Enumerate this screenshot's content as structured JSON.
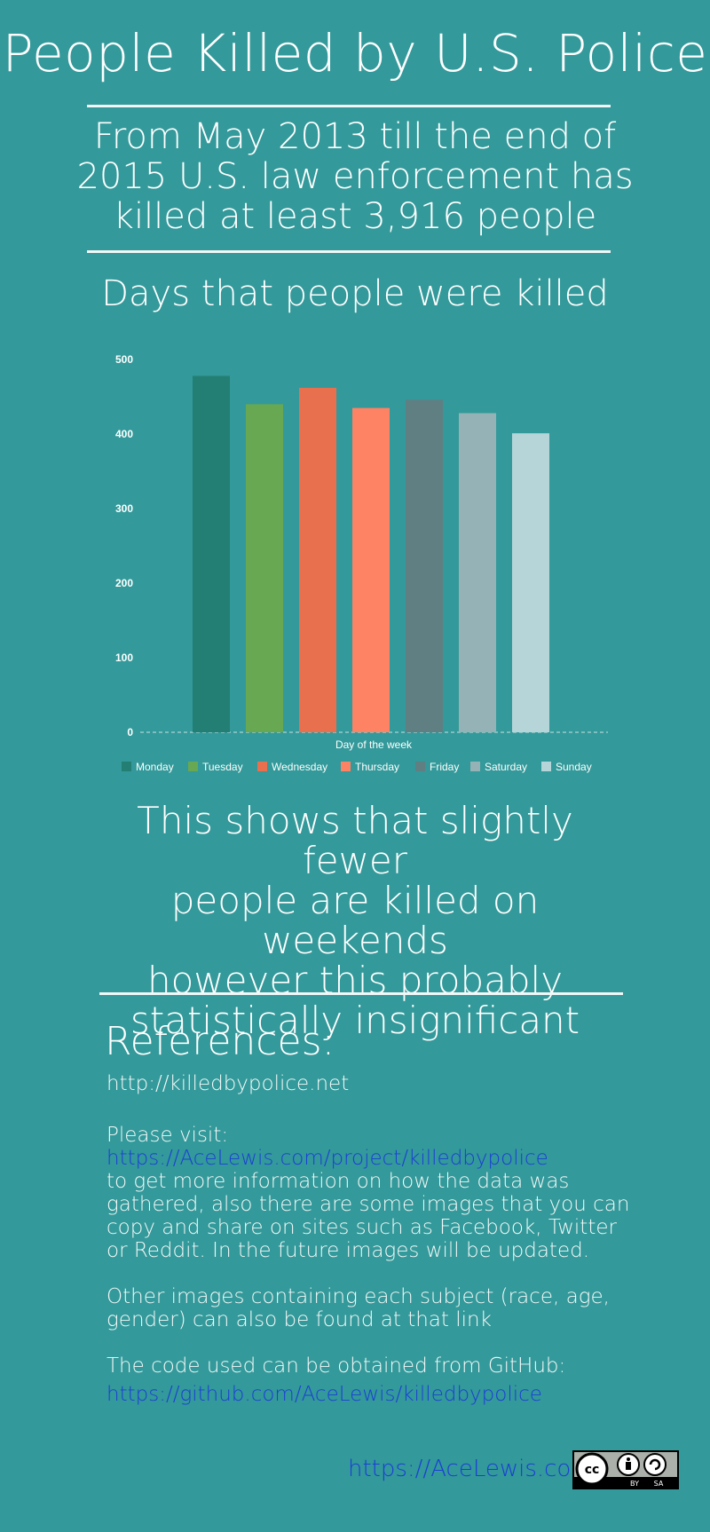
{
  "header": {
    "title": "People Killed by U.S. Police",
    "subtitle_lines": [
      "From May 2013 till the end of",
      "2015 U.S. law enforcement has",
      "killed at least 3,916 people"
    ]
  },
  "chart_data": {
    "type": "bar",
    "title": "Days that people were killed",
    "xlabel": "Day of the week",
    "ylabel": "",
    "ylim": [
      0,
      500
    ],
    "yticks": [
      0,
      100,
      200,
      300,
      400,
      500
    ],
    "grid": false,
    "legend_position": "bottom",
    "series": [
      {
        "name": "Monday",
        "value": 478,
        "color": "#237f74"
      },
      {
        "name": "Tuesday",
        "value": 440,
        "color": "#68a852"
      },
      {
        "name": "Wednesday",
        "value": 462,
        "color": "#e8704f"
      },
      {
        "name": "Thursday",
        "value": 435,
        "color": "#fe8264"
      },
      {
        "name": "Friday",
        "value": 446,
        "color": "#607f83"
      },
      {
        "name": "Saturday",
        "value": 428,
        "color": "#95b3b6"
      },
      {
        "name": "Sunday",
        "value": 401,
        "color": "#b6d5d9"
      }
    ]
  },
  "conclusion_lines": [
    "This shows that slightly fewer",
    "people are killed on weekends",
    "however this probably",
    "statistically insignificant"
  ],
  "references": {
    "heading": "References:",
    "source": "http://killedbypolice.net",
    "visit_label": "Please visit:",
    "visit_link": "https://AceLewis.com/project/killedbypolice",
    "visit_lines": [
      "to get more information on how the data was",
      "gathered, also there are some images that you can",
      "copy and share on sites such as Facebook, Twitter",
      "or Reddit. In the future images will be updated."
    ],
    "other_lines": [
      "Other images containing each subject (race, age,",
      "gender) can also be found at that link"
    ],
    "code_label": "The code used can be obtained from GitHub:",
    "code_link": "https://github.com/AceLewis/killedbypolice"
  },
  "footer": {
    "site_link": "https://AceLewis.com",
    "license_labels": [
      "BY",
      "SA"
    ],
    "license_icon": "creative-commons-by-sa-icon"
  }
}
